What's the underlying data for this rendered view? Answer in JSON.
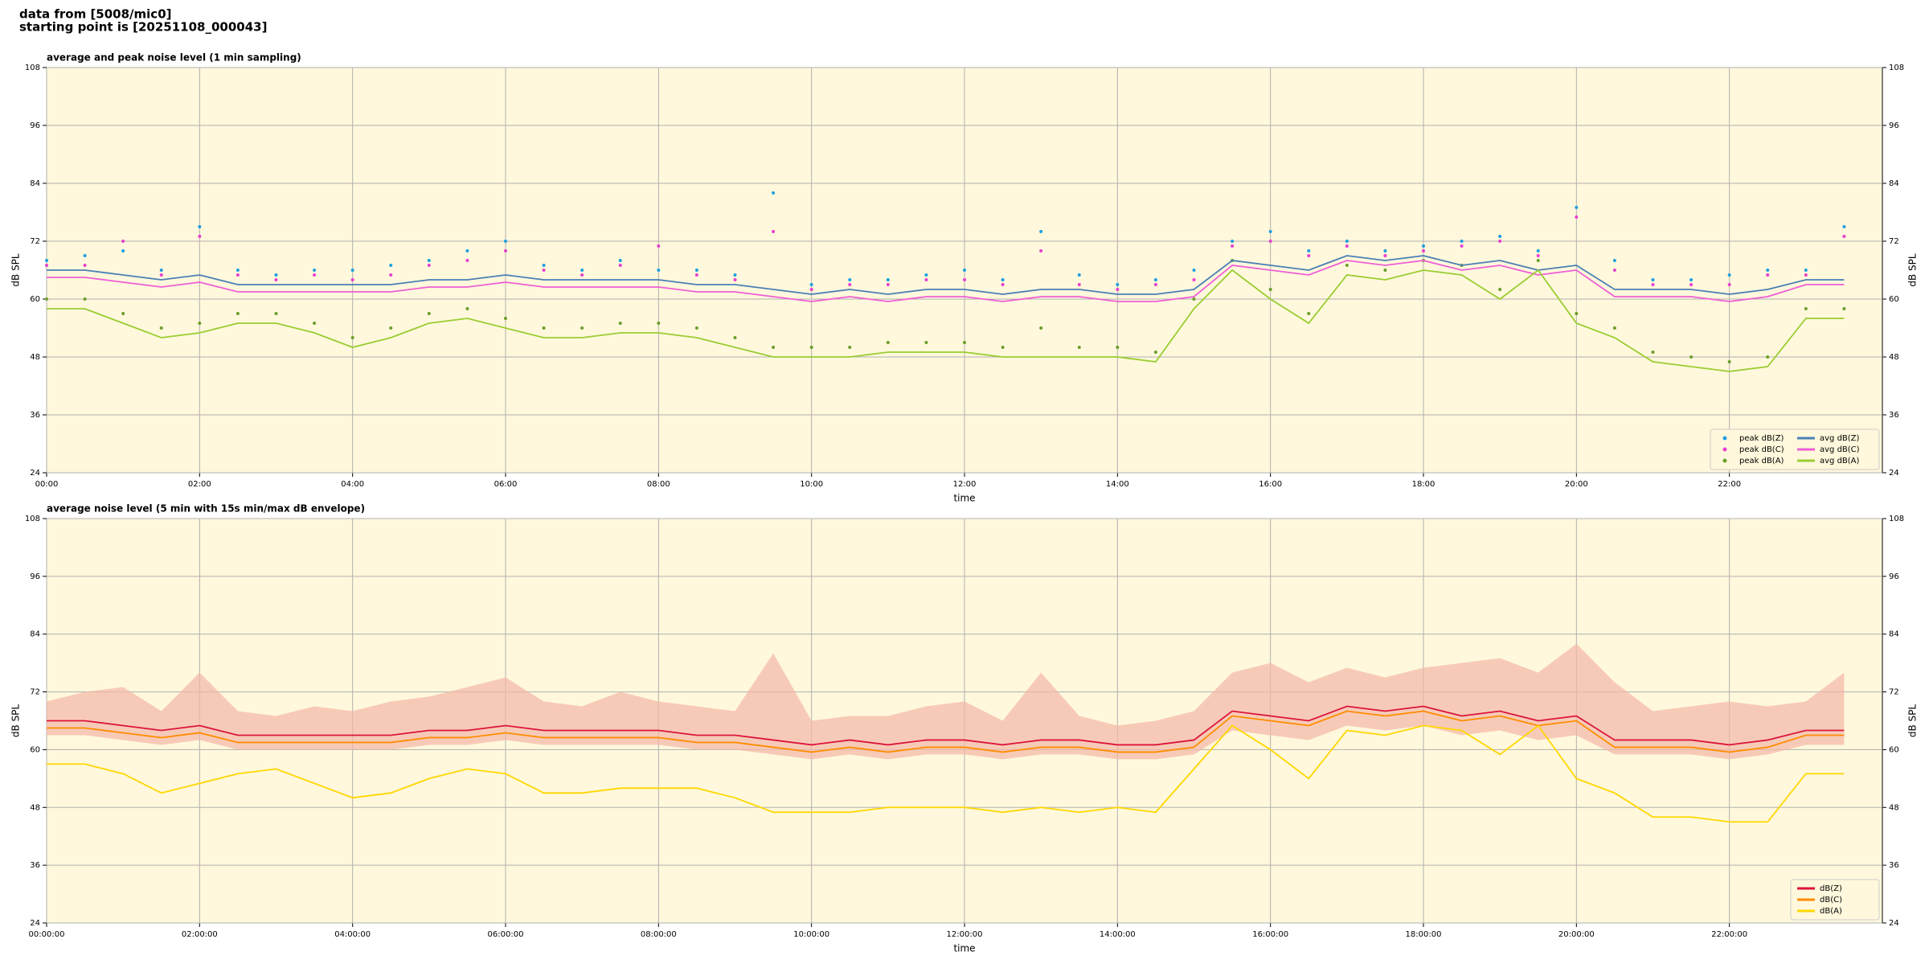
{
  "header": {
    "source": "data from [5008/mic0]",
    "start": "starting point is [20251108_000043]"
  },
  "chart_data": [
    {
      "type": "line",
      "title": "average and peak noise level (1 min sampling)",
      "x_label": "time",
      "y_label": "dB SPL",
      "x": [
        0,
        0.5,
        1,
        1.5,
        2,
        2.5,
        3,
        3.5,
        4,
        4.5,
        5,
        5.5,
        6,
        6.5,
        7,
        7.5,
        8,
        8.5,
        9,
        9.5,
        10,
        10.5,
        11,
        11.5,
        12,
        12.5,
        13,
        13.5,
        14,
        14.5,
        15,
        15.5,
        16,
        16.5,
        17,
        17.5,
        18,
        18.5,
        19,
        19.5,
        20,
        20.5,
        21,
        21.5,
        22,
        22.5,
        23,
        23.5
      ],
      "xlim": [
        0,
        24
      ],
      "xticks": [
        {
          "value": 0,
          "label": "00:00"
        },
        {
          "value": 2,
          "label": "02:00"
        },
        {
          "value": 4,
          "label": "04:00"
        },
        {
          "value": 6,
          "label": "06:00"
        },
        {
          "value": 8,
          "label": "08:00"
        },
        {
          "value": 10,
          "label": "10:00"
        },
        {
          "value": 12,
          "label": "12:00"
        },
        {
          "value": 14,
          "label": "14:00"
        },
        {
          "value": 16,
          "label": "16:00"
        },
        {
          "value": 18,
          "label": "18:00"
        },
        {
          "value": 20,
          "label": "20:00"
        },
        {
          "value": 22,
          "label": "22:00"
        }
      ],
      "ylim": [
        24,
        108
      ],
      "yticks": [
        24,
        36,
        48,
        60,
        72,
        84,
        96,
        108
      ],
      "grid": true,
      "legend": "lower right",
      "legend_columns": 2,
      "series": [
        {
          "name": "peak dB(Z)",
          "kind": "points",
          "color": "#1f9fe0",
          "values": [
            68,
            69,
            70,
            66,
            75,
            66,
            65,
            66,
            66,
            67,
            68,
            70,
            72,
            67,
            66,
            68,
            66,
            66,
            65,
            82,
            63,
            64,
            64,
            65,
            66,
            64,
            74,
            65,
            63,
            64,
            66,
            72,
            74,
            70,
            72,
            70,
            71,
            72,
            73,
            70,
            79,
            68,
            64,
            64,
            65,
            66,
            66,
            75
          ]
        },
        {
          "name": "peak dB(C)",
          "kind": "points",
          "color": "#e83fd0",
          "values": [
            67,
            67,
            72,
            65,
            73,
            65,
            64,
            65,
            64,
            65,
            67,
            68,
            70,
            66,
            65,
            67,
            71,
            65,
            64,
            74,
            62,
            63,
            63,
            64,
            64,
            63,
            70,
            63,
            62,
            63,
            64,
            71,
            72,
            69,
            71,
            69,
            70,
            71,
            72,
            69,
            77,
            66,
            63,
            63,
            63,
            65,
            65,
            73
          ]
        },
        {
          "name": "peak dB(A)",
          "kind": "points",
          "color": "#6b9e2a",
          "values": [
            60,
            60,
            57,
            54,
            55,
            57,
            57,
            55,
            52,
            54,
            57,
            58,
            56,
            54,
            54,
            55,
            55,
            54,
            52,
            50,
            50,
            50,
            51,
            51,
            51,
            50,
            54,
            50,
            50,
            49,
            60,
            68,
            62,
            57,
            67,
            66,
            68,
            67,
            62,
            68,
            57,
            54,
            49,
            48,
            47,
            48,
            58,
            58
          ]
        },
        {
          "name": "avg dB(Z)",
          "kind": "line",
          "color": "#4a7fb5",
          "values": [
            66,
            66,
            65,
            64,
            65,
            63,
            63,
            63,
            63,
            63,
            64,
            64,
            65,
            64,
            64,
            64,
            64,
            63,
            63,
            62,
            61,
            62,
            61,
            62,
            62,
            61,
            62,
            62,
            61,
            61,
            62,
            68,
            67,
            66,
            69,
            68,
            69,
            67,
            68,
            66,
            67,
            62,
            62,
            62,
            61,
            62,
            64,
            64
          ]
        },
        {
          "name": "avg dB(C)",
          "kind": "line",
          "color": "#ee5fd6",
          "values": [
            64.5,
            64.5,
            63.5,
            62.5,
            63.5,
            61.5,
            61.5,
            61.5,
            61.5,
            61.5,
            62.5,
            62.5,
            63.5,
            62.5,
            62.5,
            62.5,
            62.5,
            61.5,
            61.5,
            60.5,
            59.5,
            60.5,
            59.5,
            60.5,
            60.5,
            59.5,
            60.5,
            60.5,
            59.5,
            59.5,
            60.5,
            67,
            66,
            65,
            68,
            67,
            68,
            66,
            67,
            65,
            66,
            60.5,
            60.5,
            60.5,
            59.5,
            60.5,
            63,
            63
          ]
        },
        {
          "name": "avg dB(A)",
          "kind": "line",
          "color": "#9acd32",
          "values": [
            58,
            58,
            55,
            52,
            53,
            55,
            55,
            53,
            50,
            52,
            55,
            56,
            54,
            52,
            52,
            53,
            53,
            52,
            50,
            48,
            48,
            48,
            49,
            49,
            49,
            48,
            48,
            48,
            48,
            47,
            58,
            66,
            60,
            55,
            65,
            64,
            66,
            65,
            60,
            66,
            55,
            52,
            47,
            46,
            45,
            46,
            56,
            56
          ]
        }
      ]
    },
    {
      "type": "line",
      "title": "average noise level (5 min with 15s min/max dB envelope)",
      "x_label": "time",
      "y_label": "dB SPL",
      "x": [
        0,
        0.5,
        1,
        1.5,
        2,
        2.5,
        3,
        3.5,
        4,
        4.5,
        5,
        5.5,
        6,
        6.5,
        7,
        7.5,
        8,
        8.5,
        9,
        9.5,
        10,
        10.5,
        11,
        11.5,
        12,
        12.5,
        13,
        13.5,
        14,
        14.5,
        15,
        15.5,
        16,
        16.5,
        17,
        17.5,
        18,
        18.5,
        19,
        19.5,
        20,
        20.5,
        21,
        21.5,
        22,
        22.5,
        23,
        23.5
      ],
      "xlim": [
        0,
        24
      ],
      "xticks": [
        {
          "value": 0,
          "label": "00:00:00"
        },
        {
          "value": 2,
          "label": "02:00:00"
        },
        {
          "value": 4,
          "label": "04:00:00"
        },
        {
          "value": 6,
          "label": "06:00:00"
        },
        {
          "value": 8,
          "label": "08:00:00"
        },
        {
          "value": 10,
          "label": "10:00:00"
        },
        {
          "value": 12,
          "label": "12:00:00"
        },
        {
          "value": 14,
          "label": "14:00:00"
        },
        {
          "value": 16,
          "label": "16:00:00"
        },
        {
          "value": 18,
          "label": "18:00:00"
        },
        {
          "value": 20,
          "label": "20:00:00"
        },
        {
          "value": 22,
          "label": "22:00:00"
        }
      ],
      "ylim": [
        24,
        108
      ],
      "yticks": [
        24,
        36,
        48,
        60,
        72,
        84,
        96,
        108
      ],
      "grid": true,
      "legend": "lower right",
      "legend_columns": 1,
      "envelope": {
        "color": "#f4b6a6",
        "min": [
          63,
          63,
          62,
          61,
          62,
          60,
          60,
          60,
          60,
          60,
          61,
          61,
          62,
          61,
          61,
          61,
          61,
          60,
          60,
          59,
          58,
          59,
          58,
          59,
          59,
          58,
          59,
          59,
          58,
          58,
          59,
          64,
          63,
          62,
          65,
          64,
          65,
          63,
          64,
          62,
          63,
          59,
          59,
          59,
          58,
          59,
          61,
          61
        ],
        "max": [
          70,
          72,
          73,
          68,
          76,
          68,
          67,
          69,
          68,
          70,
          71,
          73,
          75,
          70,
          69,
          72,
          70,
          69,
          68,
          80,
          66,
          67,
          67,
          69,
          70,
          66,
          76,
          67,
          65,
          66,
          68,
          76,
          78,
          74,
          77,
          75,
          77,
          78,
          79,
          76,
          82,
          74,
          68,
          69,
          70,
          69,
          70,
          76
        ]
      },
      "series": [
        {
          "name": "dB(Z)",
          "kind": "line",
          "color": "#dc143c",
          "values": [
            66,
            66,
            65,
            64,
            65,
            63,
            63,
            63,
            63,
            63,
            64,
            64,
            65,
            64,
            64,
            64,
            64,
            63,
            63,
            62,
            61,
            62,
            61,
            62,
            62,
            61,
            62,
            62,
            61,
            61,
            62,
            68,
            67,
            66,
            69,
            68,
            69,
            67,
            68,
            66,
            67,
            62,
            62,
            62,
            61,
            62,
            64,
            64
          ]
        },
        {
          "name": "dB(C)",
          "kind": "line",
          "color": "#ff8c00",
          "values": [
            64.5,
            64.5,
            63.5,
            62.5,
            63.5,
            61.5,
            61.5,
            61.5,
            61.5,
            61.5,
            62.5,
            62.5,
            63.5,
            62.5,
            62.5,
            62.5,
            62.5,
            61.5,
            61.5,
            60.5,
            59.5,
            60.5,
            59.5,
            60.5,
            60.5,
            59.5,
            60.5,
            60.5,
            59.5,
            59.5,
            60.5,
            67,
            66,
            65,
            68,
            67,
            68,
            66,
            67,
            65,
            66,
            60.5,
            60.5,
            60.5,
            59.5,
            60.5,
            63,
            63
          ]
        },
        {
          "name": "dB(A)",
          "kind": "line",
          "color": "#ffd700",
          "values": [
            57,
            57,
            55,
            51,
            53,
            55,
            56,
            53,
            50,
            51,
            54,
            56,
            55,
            51,
            51,
            52,
            52,
            52,
            50,
            47,
            47,
            47,
            48,
            48,
            48,
            47,
            48,
            47,
            48,
            47,
            56,
            65,
            60,
            54,
            64,
            63,
            65,
            64,
            59,
            65,
            54,
            51,
            46,
            46,
            45,
            45,
            55,
            55
          ]
        }
      ]
    }
  ]
}
